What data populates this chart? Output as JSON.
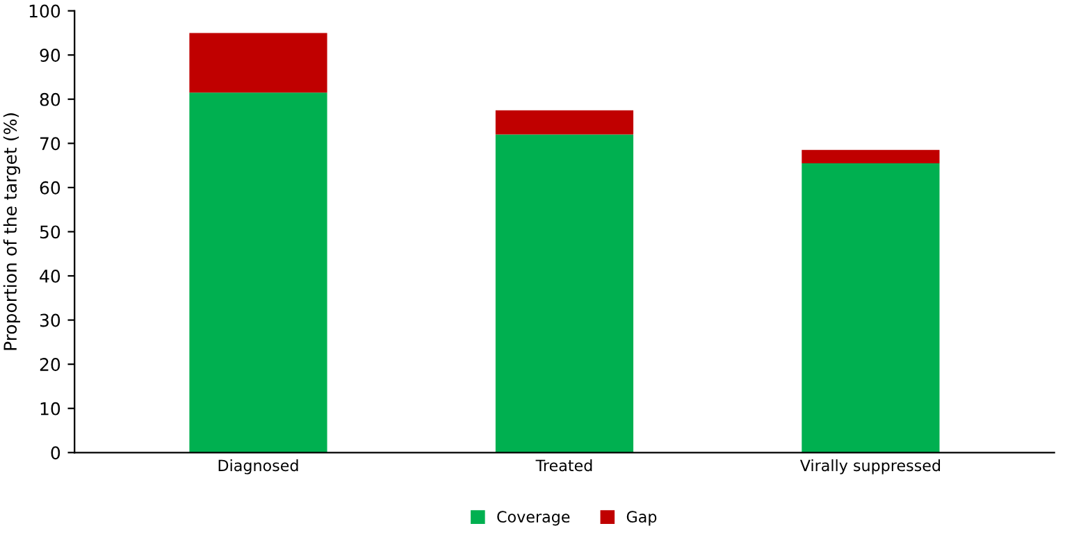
{
  "chart_data": {
    "type": "bar",
    "stacked": true,
    "categories": [
      "Diagnosed",
      "Treated",
      "Virally suppressed"
    ],
    "series": [
      {
        "name": "Coverage",
        "color": "#00b050",
        "values": [
          81.5,
          72,
          65.5
        ]
      },
      {
        "name": "Gap",
        "color": "#c00000",
        "values": [
          13.5,
          5.5,
          3
        ]
      }
    ],
    "ylabel": "Proportion of the target (%)",
    "ylim": [
      0,
      100
    ],
    "yticks": [
      0,
      10,
      20,
      30,
      40,
      50,
      60,
      70,
      80,
      90,
      100
    ],
    "grid": false,
    "legend": "bottom"
  }
}
